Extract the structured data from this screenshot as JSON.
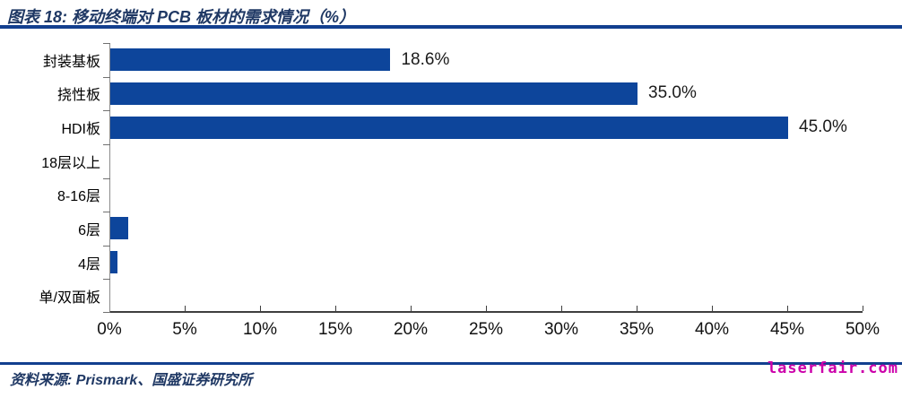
{
  "header": {
    "title": "图表 18:  移动终端对 PCB 板材的需求情况（%）"
  },
  "chart_data": {
    "type": "bar",
    "orientation": "horizontal",
    "title": "图表 18:  移动终端对 PCB 板材的需求情况（%）",
    "categories": [
      "封装基板",
      "挠性板",
      "HDI板",
      "18层以上",
      "8-16层",
      "6层",
      "4层",
      "单/双面板"
    ],
    "values": [
      18.6,
      35.0,
      45.0,
      0,
      0,
      1.2,
      0.5,
      0
    ],
    "data_labels": [
      "18.6%",
      "35.0%",
      "45.0%",
      "",
      "",
      "",
      "",
      ""
    ],
    "xlabel": "",
    "ylabel": "",
    "xlim": [
      0,
      50
    ],
    "x_ticks": [
      "0%",
      "5%",
      "10%",
      "15%",
      "20%",
      "25%",
      "30%",
      "35%",
      "40%",
      "45%",
      "50%"
    ],
    "grid": false,
    "legend": false,
    "bar_color": "#0D459B"
  },
  "footer": {
    "source": "资料来源:  Prismark、国盛证券研究所",
    "watermark": "laserfair.com"
  },
  "colors": {
    "accent_navy": "#1F3864",
    "rule_navy": "#123F8F",
    "bar_blue": "#0D459B",
    "watermark_magenta": "#CC00AA"
  }
}
